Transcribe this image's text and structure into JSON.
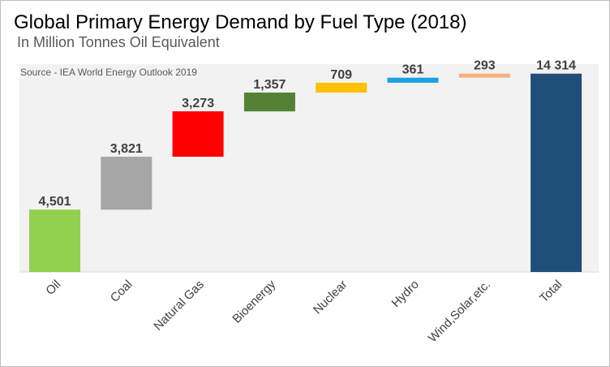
{
  "chart_data": {
    "type": "waterfall",
    "title": "Global Primary Energy Demand by Fuel Type (2018)",
    "subtitle": "In Million Tonnes Oil Equivalent",
    "source": "Source - IEA World Energy Outlook 2019",
    "categories": [
      "Oil",
      "Coal",
      "Natural Gas",
      "Bioenergy",
      "Nuclear",
      "Hydro",
      "Wind,Solar,etc.",
      "Total"
    ],
    "values": [
      4501,
      3821,
      3273,
      1357,
      709,
      361,
      293,
      14314
    ],
    "value_labels": [
      "4,501",
      "3,821",
      "3,273",
      "1,357",
      "709",
      "361",
      "293",
      "14 314"
    ],
    "colors": [
      "#92d050",
      "#a6a6a6",
      "#ff0000",
      "#548235",
      "#ffc000",
      "#1ba1e2",
      "#f4b183",
      "#1f4e79"
    ],
    "is_total": [
      false,
      false,
      false,
      false,
      false,
      false,
      false,
      true
    ],
    "ylim": [
      0,
      15000
    ],
    "grid": false,
    "legend": "none",
    "xlabel": "",
    "ylabel": ""
  }
}
